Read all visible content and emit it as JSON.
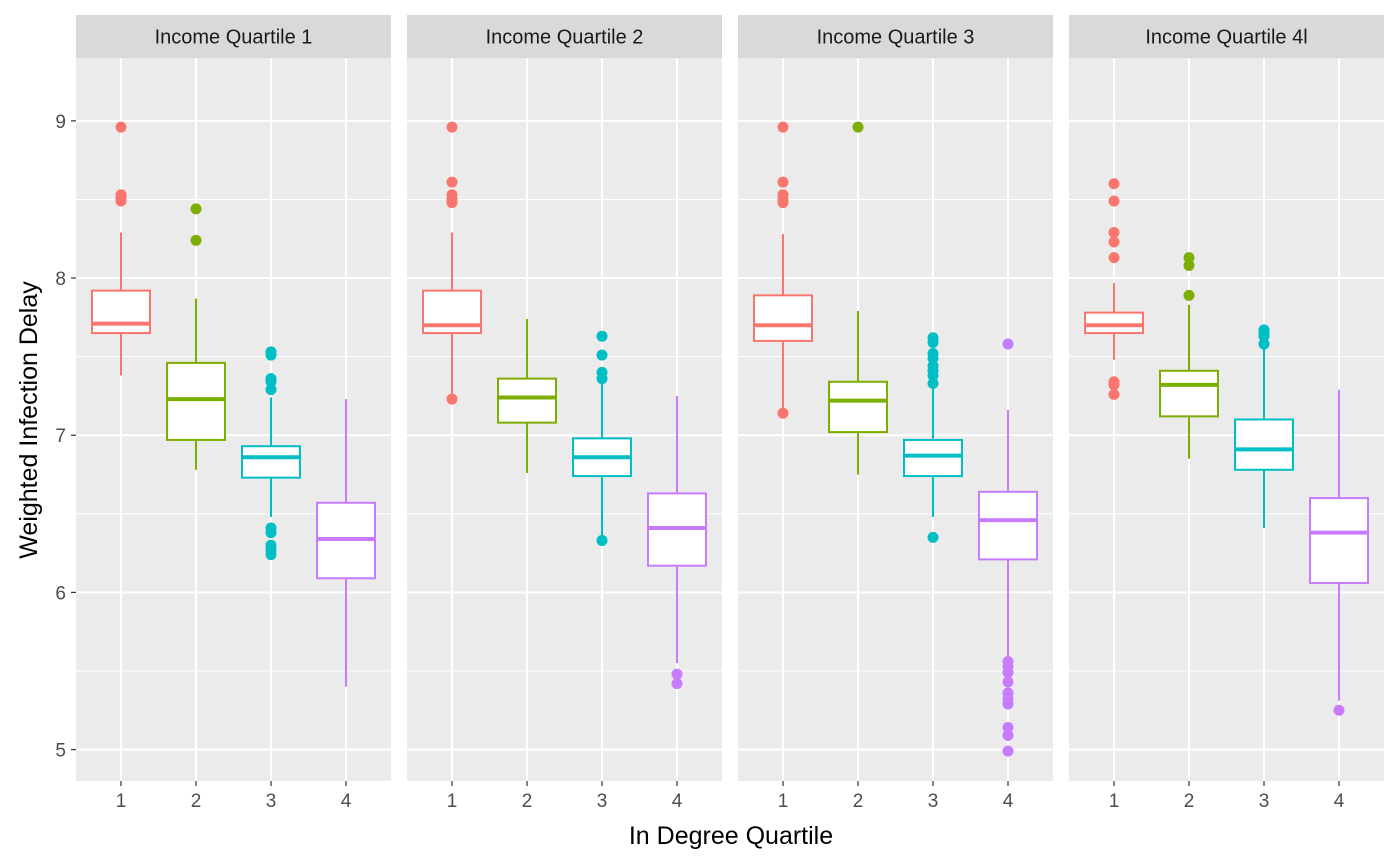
{
  "chart_data": {
    "type": "box",
    "xlabel": "In Degree Quartile",
    "ylabel": "Weighted Infection Delay",
    "ylim": [
      4.8,
      9.4
    ],
    "yticks": [
      5,
      6,
      7,
      8,
      9
    ],
    "categories": [
      "1",
      "2",
      "3",
      "4"
    ],
    "grid": true,
    "legend": "none",
    "colors": [
      "#F8766D",
      "#7CAE00",
      "#00BFC4",
      "#C77CFF"
    ],
    "panels": [
      {
        "title": "Income Quartile 1",
        "boxes": [
          {
            "x": "1",
            "lower_whisker": 7.38,
            "q1": 7.65,
            "median": 7.71,
            "q3": 7.92,
            "upper_whisker": 8.29,
            "outliers": [
              8.96,
              8.53,
              8.52,
              8.5,
              8.49
            ]
          },
          {
            "x": "2",
            "lower_whisker": 6.78,
            "q1": 6.97,
            "median": 7.23,
            "q3": 7.46,
            "upper_whisker": 7.87,
            "outliers": [
              8.44,
              8.24
            ]
          },
          {
            "x": "3",
            "lower_whisker": 6.48,
            "q1": 6.73,
            "median": 6.86,
            "q3": 6.93,
            "upper_whisker": 7.24,
            "outliers": [
              7.53,
              7.51,
              7.36,
              7.34,
              7.29,
              6.41,
              6.38,
              6.3,
              6.27,
              6.24
            ]
          },
          {
            "x": "4",
            "lower_whisker": 5.4,
            "q1": 6.09,
            "median": 6.34,
            "q3": 6.57,
            "upper_whisker": 7.23,
            "outliers": []
          }
        ]
      },
      {
        "title": "Income Quartile 2",
        "boxes": [
          {
            "x": "1",
            "lower_whisker": 7.23,
            "q1": 7.65,
            "median": 7.7,
            "q3": 7.92,
            "upper_whisker": 8.29,
            "outliers": [
              8.96,
              8.61,
              8.53,
              8.5,
              8.48,
              7.23
            ]
          },
          {
            "x": "2",
            "lower_whisker": 6.76,
            "q1": 7.08,
            "median": 7.24,
            "q3": 7.36,
            "upper_whisker": 7.74,
            "outliers": []
          },
          {
            "x": "3",
            "lower_whisker": 6.33,
            "q1": 6.74,
            "median": 6.86,
            "q3": 6.98,
            "upper_whisker": 7.36,
            "outliers": [
              7.63,
              7.51,
              7.4,
              7.36,
              6.33
            ]
          },
          {
            "x": "4",
            "lower_whisker": 5.55,
            "q1": 6.17,
            "median": 6.41,
            "q3": 6.63,
            "upper_whisker": 7.25,
            "outliers": [
              5.48,
              5.42
            ]
          }
        ]
      },
      {
        "title": "Income Quartile 3",
        "boxes": [
          {
            "x": "1",
            "lower_whisker": 7.14,
            "q1": 7.6,
            "median": 7.7,
            "q3": 7.89,
            "upper_whisker": 8.28,
            "outliers": [
              8.96,
              8.61,
              8.53,
              8.5,
              8.48,
              7.14
            ]
          },
          {
            "x": "2",
            "lower_whisker": 6.75,
            "q1": 7.02,
            "median": 7.22,
            "q3": 7.34,
            "upper_whisker": 7.79,
            "outliers": [
              8.96
            ]
          },
          {
            "x": "3",
            "lower_whisker": 6.48,
            "q1": 6.74,
            "median": 6.87,
            "q3": 6.97,
            "upper_whisker": 7.31,
            "outliers": [
              7.62,
              7.59,
              7.52,
              7.49,
              7.44,
              7.41,
              7.38,
              7.33,
              6.35
            ]
          },
          {
            "x": "4",
            "lower_whisker": 5.58,
            "q1": 6.21,
            "median": 6.46,
            "q3": 6.64,
            "upper_whisker": 7.16,
            "outliers": [
              7.58,
              5.56,
              5.53,
              5.49,
              5.43,
              5.36,
              5.32,
              5.29,
              5.14,
              5.09,
              4.99
            ]
          }
        ]
      },
      {
        "title": "Income Quartile 4l",
        "boxes": [
          {
            "x": "1",
            "lower_whisker": 7.48,
            "q1": 7.65,
            "median": 7.7,
            "q3": 7.78,
            "upper_whisker": 7.97,
            "outliers": [
              8.6,
              8.49,
              8.29,
              8.23,
              8.13,
              7.34,
              7.32,
              7.26
            ]
          },
          {
            "x": "2",
            "lower_whisker": 6.85,
            "q1": 7.12,
            "median": 7.32,
            "q3": 7.41,
            "upper_whisker": 7.83,
            "outliers": [
              8.13,
              8.08,
              7.89
            ]
          },
          {
            "x": "3",
            "lower_whisker": 6.41,
            "q1": 6.78,
            "median": 6.91,
            "q3": 7.1,
            "upper_whisker": 7.55,
            "outliers": [
              7.67,
              7.65,
              7.63,
              7.58
            ]
          },
          {
            "x": "4",
            "lower_whisker": 5.31,
            "q1": 6.06,
            "median": 6.38,
            "q3": 6.6,
            "upper_whisker": 7.29,
            "outliers": [
              5.25
            ]
          }
        ]
      }
    ]
  }
}
